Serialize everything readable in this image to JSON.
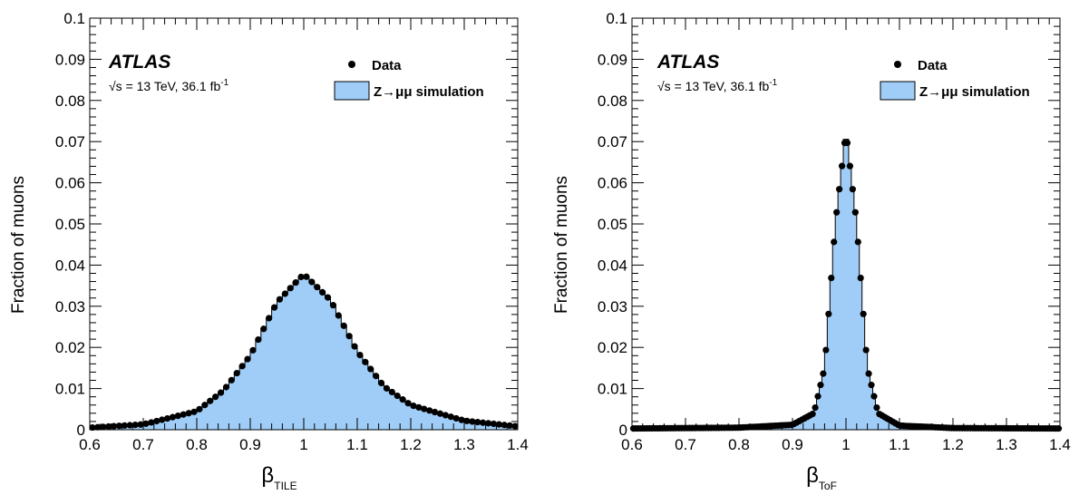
{
  "chart_data": [
    {
      "type": "histogram+scatter",
      "ylabel": "Fraction of muons",
      "xlabel_main": "β",
      "xlabel_sub": "TILE",
      "xlim": [
        0.6,
        1.4
      ],
      "ylim": [
        0,
        0.1
      ],
      "x_ticks": [
        "0.6",
        "0.7",
        "0.8",
        "0.9",
        "1",
        "1.1",
        "1.2",
        "1.3",
        "1.4"
      ],
      "y_ticks": [
        "0",
        "0.01",
        "0.02",
        "0.03",
        "0.04",
        "0.05",
        "0.06",
        "0.07",
        "0.08",
        "0.09",
        "0.1"
      ],
      "experiment": "ATLAS",
      "energy": "√s = 13 TeV, 36.1 fb",
      "energy_sup": "-1",
      "legend": {
        "position": "top-right",
        "entries": [
          {
            "label": "Data",
            "marker": "dot"
          },
          {
            "label": "Z→μμ simulation",
            "marker": "filled-box",
            "color": "#9fcdf7"
          }
        ]
      },
      "bin_width": 0.01,
      "series": [
        {
          "name": "Z→μμ simulation",
          "style": "histogram",
          "color": "#9fcdf7",
          "x": [
            0.6,
            0.7,
            0.8,
            0.85,
            0.9,
            0.95,
            1.0,
            1.05,
            1.1,
            1.15,
            1.2,
            1.3,
            1.4
          ],
          "y": [
            0.0005,
            0.0013,
            0.0045,
            0.0095,
            0.018,
            0.031,
            0.0378,
            0.0315,
            0.019,
            0.0105,
            0.006,
            0.0022,
            0.0008
          ]
        },
        {
          "name": "Data",
          "style": "points",
          "color": "#000000",
          "x": [
            0.6,
            0.7,
            0.8,
            0.85,
            0.9,
            0.95,
            1.0,
            1.05,
            1.1,
            1.15,
            1.2,
            1.3,
            1.4
          ],
          "y": [
            0.0005,
            0.0013,
            0.0045,
            0.0095,
            0.018,
            0.031,
            0.0378,
            0.0315,
            0.019,
            0.0105,
            0.006,
            0.0022,
            0.0008
          ]
        }
      ]
    },
    {
      "type": "histogram+scatter",
      "ylabel": "Fraction of muons",
      "xlabel_main": "β",
      "xlabel_sub": "ToF",
      "xlim": [
        0.6,
        1.4
      ],
      "ylim": [
        0,
        0.1
      ],
      "x_ticks": [
        "0.6",
        "0.7",
        "0.8",
        "0.9",
        "1",
        "1.1",
        "1.2",
        "1.3",
        "1.4"
      ],
      "y_ticks": [
        "0",
        "0.01",
        "0.02",
        "0.03",
        "0.04",
        "0.05",
        "0.06",
        "0.07",
        "0.08",
        "0.09",
        "0.1"
      ],
      "experiment": "ATLAS",
      "energy": "√s = 13 TeV, 36.1 fb",
      "energy_sup": "-1",
      "legend": {
        "position": "top-right",
        "entries": [
          {
            "label": "Data",
            "marker": "dot"
          },
          {
            "label": "Z→μμ simulation",
            "marker": "filled-box",
            "color": "#9fcdf7"
          }
        ]
      },
      "bin_width": 0.005,
      "series": [
        {
          "name": "Z→μμ simulation",
          "style": "histogram",
          "color": "#9fcdf7",
          "x": [
            0.6,
            0.8,
            0.9,
            0.94,
            0.96,
            0.98,
            1.0,
            1.02,
            1.04,
            1.06,
            1.1,
            1.2,
            1.4
          ],
          "y": [
            0.0003,
            0.0005,
            0.0012,
            0.004,
            0.015,
            0.05,
            0.0735,
            0.05,
            0.015,
            0.004,
            0.001,
            0.0004,
            0.0003
          ]
        },
        {
          "name": "Data",
          "style": "points",
          "color": "#000000",
          "x": [
            0.6,
            0.8,
            0.9,
            0.94,
            0.96,
            0.98,
            1.0,
            1.02,
            1.04,
            1.06,
            1.1,
            1.2,
            1.4
          ],
          "y": [
            0.0003,
            0.0005,
            0.0012,
            0.004,
            0.015,
            0.05,
            0.0725,
            0.05,
            0.015,
            0.004,
            0.001,
            0.0004,
            0.0003
          ]
        }
      ]
    }
  ]
}
